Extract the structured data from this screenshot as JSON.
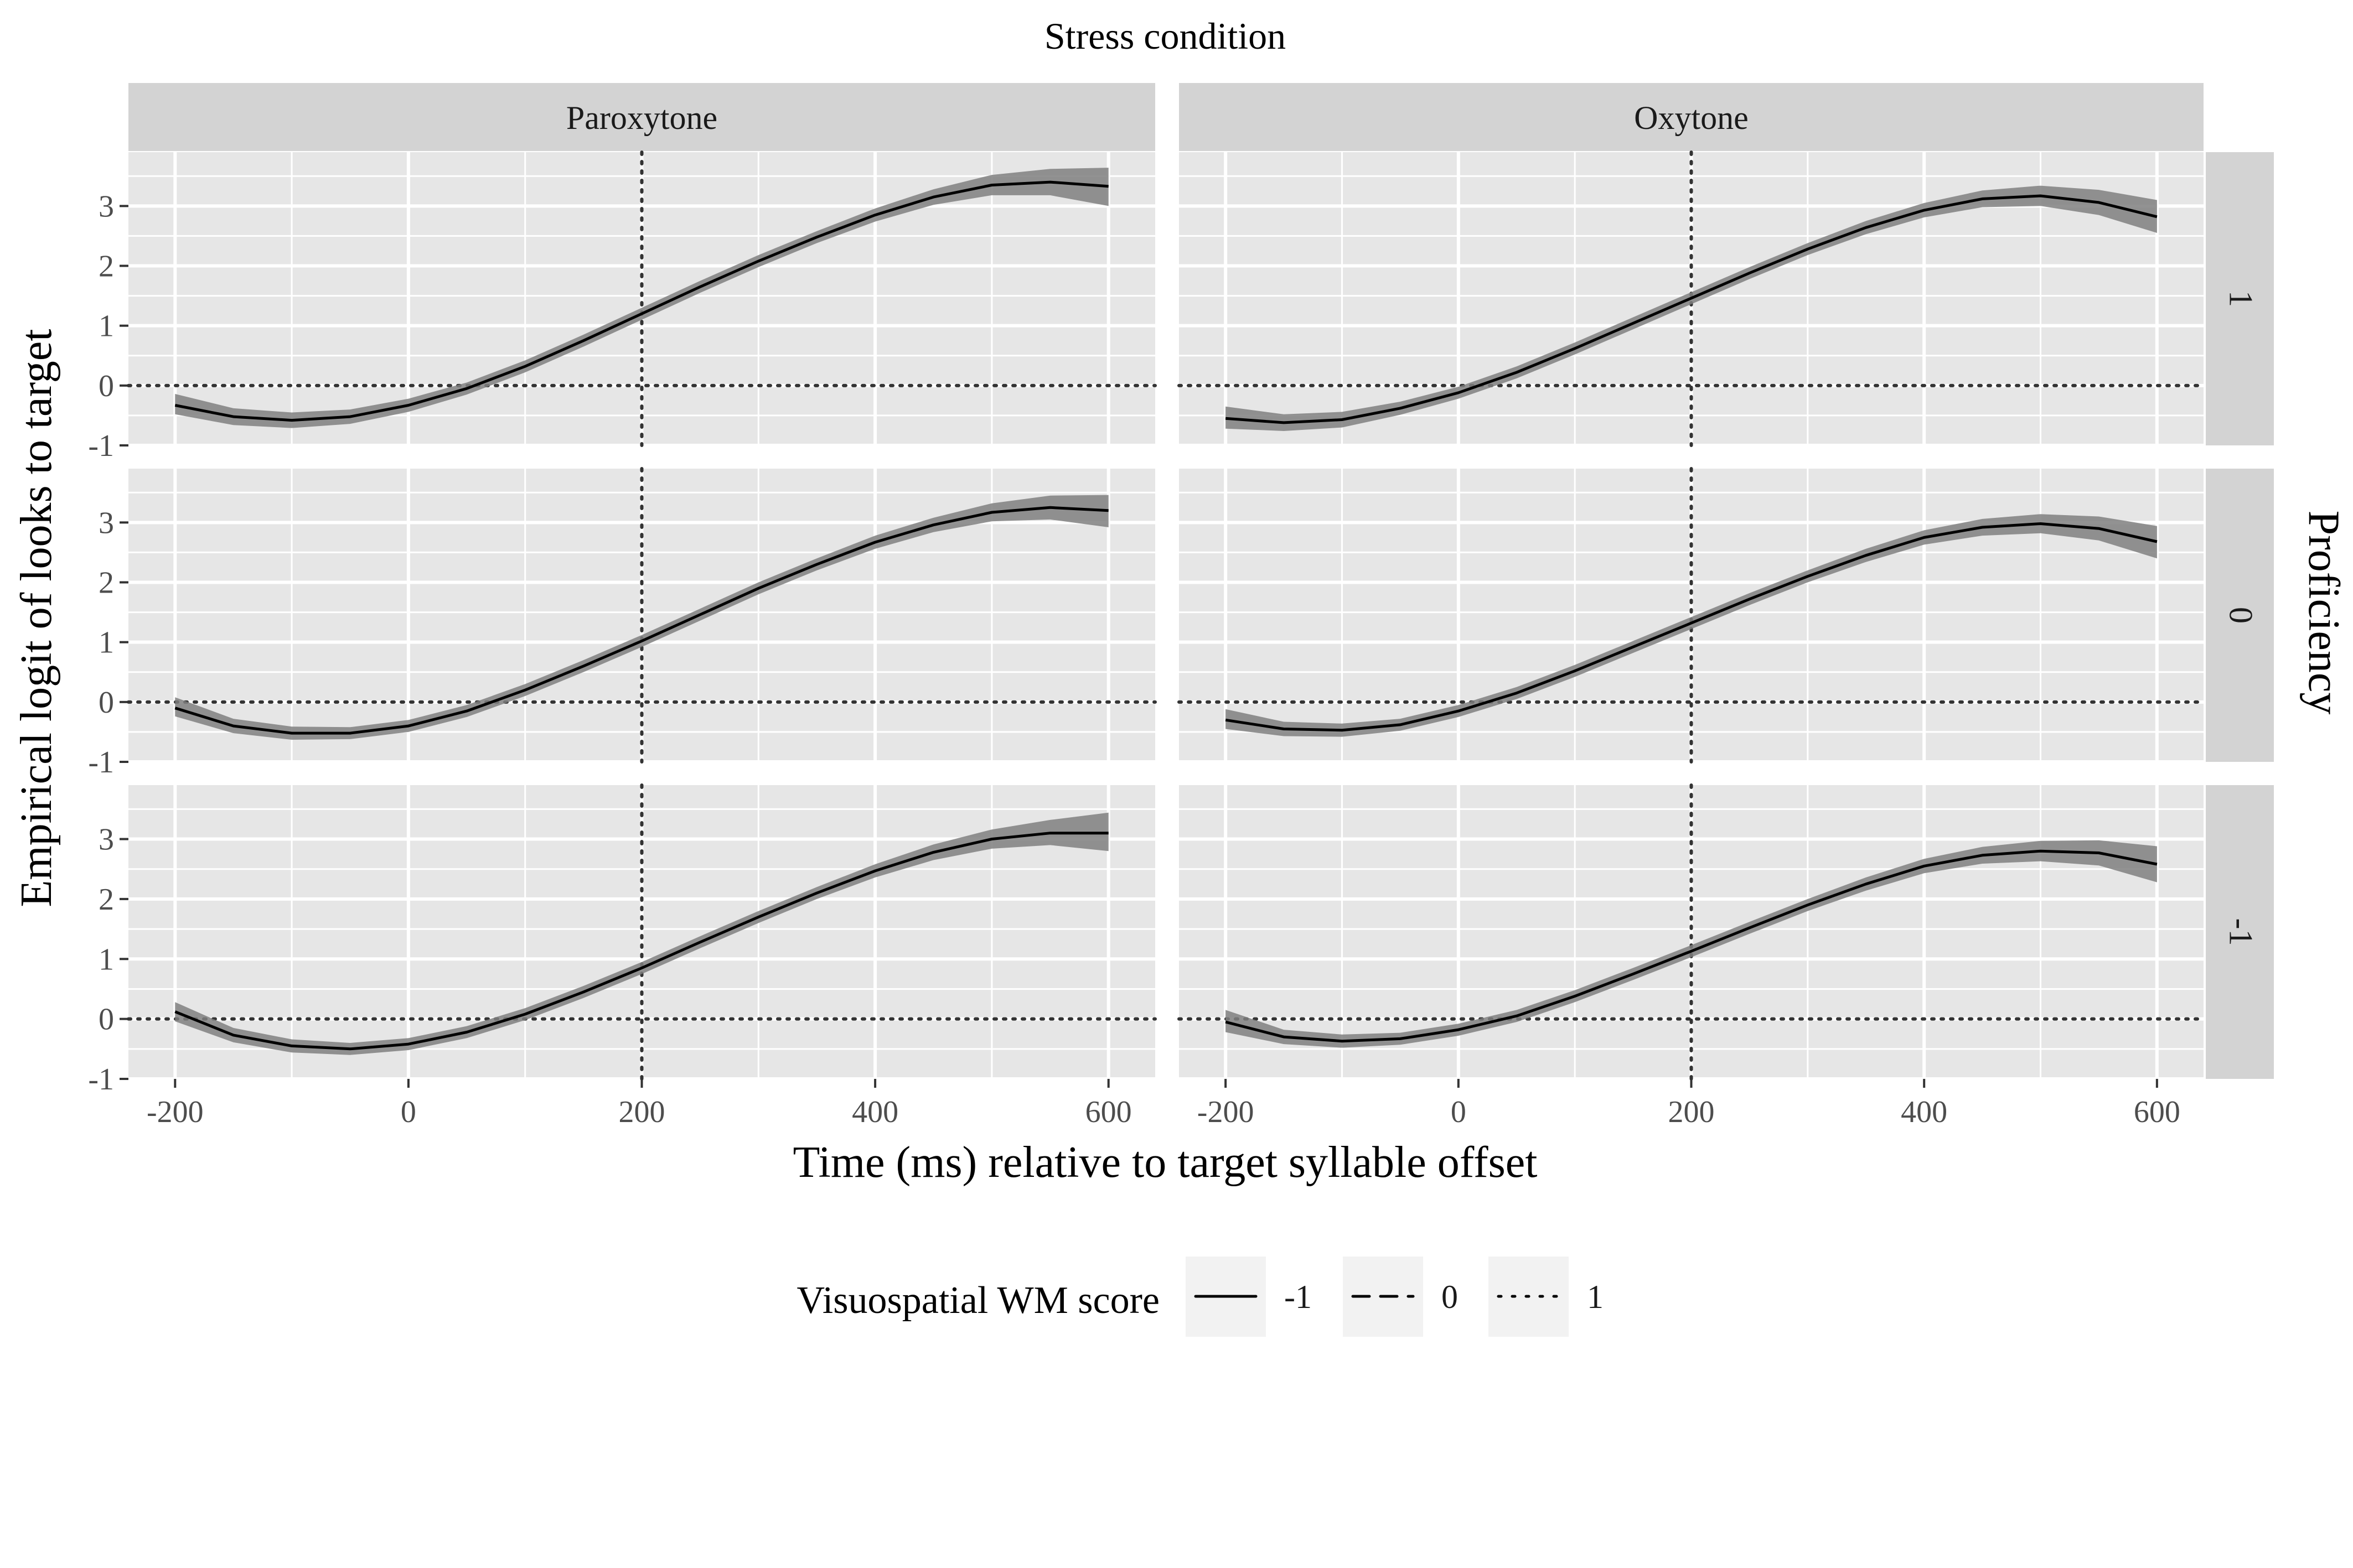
{
  "figure": {
    "top_title": "Stress condition",
    "row_strip_title": "Proficiency",
    "x_axis_title": "Time (ms) relative to target syllable offset",
    "y_axis_title": "Empirical logit of looks to target"
  },
  "legend": {
    "title": "Visuospatial WM score",
    "items": [
      {
        "label": "-1",
        "dash": "solid"
      },
      {
        "label": "0",
        "dash": "dashed"
      },
      {
        "label": "1",
        "dash": "dotted"
      }
    ]
  },
  "colors": {
    "panel_bg": "#e6e6e6",
    "strip_bg": "#d3d3d3",
    "grid": "#ffffff",
    "ribbon": "#7f7f7f",
    "line": "#000000",
    "refline": "#333333"
  },
  "chart_data": {
    "type": "line",
    "facet_columns": [
      "Paroxytone",
      "Oxytone"
    ],
    "facet_rows": [
      "1",
      "0",
      "-1"
    ],
    "xlim": [
      -240,
      640
    ],
    "ylim": [
      -1,
      3.9
    ],
    "x_ticks": [
      -200,
      0,
      200,
      400,
      600
    ],
    "y_ticks": [
      -1,
      0,
      1,
      2,
      3
    ],
    "reference_lines": {
      "vertical_x": 200,
      "horizontal_y": 0
    },
    "grid": true,
    "legend_position": "bottom",
    "x": [
      -200,
      -150,
      -100,
      -50,
      0,
      50,
      100,
      150,
      200,
      250,
      300,
      350,
      400,
      450,
      500,
      550,
      600
    ],
    "panels": [
      {
        "column": "Paroxytone",
        "row": "1",
        "series": [
          {
            "name": "-1",
            "values": [
              -0.33,
              -0.52,
              -0.58,
              -0.52,
              -0.33,
              -0.05,
              0.32,
              0.75,
              1.2,
              1.65,
              2.08,
              2.48,
              2.85,
              3.15,
              3.35,
              3.4,
              3.33
            ],
            "lower": [
              -0.48,
              -0.66,
              -0.71,
              -0.64,
              -0.44,
              -0.15,
              0.22,
              0.65,
              1.1,
              1.55,
              1.98,
              2.38,
              2.74,
              3.02,
              3.18,
              3.18,
              3.0
            ],
            "upper": [
              -0.14,
              -0.38,
              -0.45,
              -0.4,
              -0.22,
              0.05,
              0.42,
              0.85,
              1.3,
              1.75,
              2.18,
              2.58,
              2.96,
              3.28,
              3.52,
              3.62,
              3.64
            ]
          }
        ]
      },
      {
        "column": "Oxytone",
        "row": "1",
        "series": [
          {
            "name": "-1",
            "values": [
              -0.55,
              -0.62,
              -0.57,
              -0.38,
              -0.12,
              0.22,
              0.62,
              1.04,
              1.46,
              1.88,
              2.28,
              2.64,
              2.93,
              3.12,
              3.17,
              3.06,
              2.82
            ],
            "lower": [
              -0.72,
              -0.76,
              -0.7,
              -0.49,
              -0.22,
              0.12,
              0.52,
              0.94,
              1.36,
              1.78,
              2.18,
              2.53,
              2.81,
              2.98,
              3.0,
              2.85,
              2.55
            ],
            "upper": [
              -0.35,
              -0.48,
              -0.44,
              -0.27,
              -0.02,
              0.32,
              0.72,
              1.14,
              1.56,
              1.98,
              2.38,
              2.75,
              3.05,
              3.26,
              3.34,
              3.27,
              3.1
            ]
          }
        ]
      },
      {
        "column": "Paroxytone",
        "row": "0",
        "series": [
          {
            "name": "-1",
            "values": [
              -0.1,
              -0.4,
              -0.52,
              -0.52,
              -0.4,
              -0.15,
              0.2,
              0.6,
              1.02,
              1.46,
              1.9,
              2.3,
              2.67,
              2.96,
              3.17,
              3.25,
              3.2
            ],
            "lower": [
              -0.24,
              -0.52,
              -0.63,
              -0.62,
              -0.5,
              -0.25,
              0.1,
              0.5,
              0.92,
              1.36,
              1.8,
              2.2,
              2.56,
              2.84,
              3.02,
              3.05,
              2.92
            ],
            "upper": [
              0.08,
              -0.28,
              -0.41,
              -0.42,
              -0.3,
              -0.05,
              0.3,
              0.7,
              1.12,
              1.56,
              2.0,
              2.4,
              2.78,
              3.08,
              3.32,
              3.45,
              3.46
            ]
          }
        ]
      },
      {
        "column": "Oxytone",
        "row": "0",
        "series": [
          {
            "name": "-1",
            "values": [
              -0.3,
              -0.45,
              -0.47,
              -0.38,
              -0.15,
              0.15,
              0.52,
              0.92,
              1.32,
              1.72,
              2.1,
              2.45,
              2.75,
              2.92,
              2.98,
              2.9,
              2.68
            ],
            "lower": [
              -0.45,
              -0.57,
              -0.58,
              -0.48,
              -0.25,
              0.05,
              0.42,
              0.82,
              1.22,
              1.62,
              2.0,
              2.34,
              2.63,
              2.78,
              2.82,
              2.7,
              2.4
            ],
            "upper": [
              -0.12,
              -0.33,
              -0.36,
              -0.28,
              -0.05,
              0.25,
              0.62,
              1.02,
              1.42,
              1.82,
              2.2,
              2.56,
              2.87,
              3.06,
              3.14,
              3.1,
              2.94
            ]
          }
        ]
      },
      {
        "column": "Paroxytone",
        "row": "-1",
        "series": [
          {
            "name": "-1",
            "values": [
              0.12,
              -0.27,
              -0.45,
              -0.5,
              -0.42,
              -0.22,
              0.08,
              0.45,
              0.85,
              1.28,
              1.7,
              2.1,
              2.47,
              2.78,
              3.0,
              3.1,
              3.1
            ],
            "lower": [
              -0.04,
              -0.39,
              -0.56,
              -0.6,
              -0.52,
              -0.32,
              -0.02,
              0.35,
              0.75,
              1.18,
              1.6,
              2.0,
              2.36,
              2.65,
              2.84,
              2.9,
              2.8
            ],
            "upper": [
              0.28,
              -0.15,
              -0.34,
              -0.4,
              -0.32,
              -0.12,
              0.18,
              0.55,
              0.95,
              1.38,
              1.8,
              2.2,
              2.58,
              2.91,
              3.16,
              3.32,
              3.44
            ]
          }
        ]
      },
      {
        "column": "Oxytone",
        "row": "-1",
        "series": [
          {
            "name": "-1",
            "values": [
              -0.05,
              -0.3,
              -0.37,
              -0.33,
              -0.18,
              0.05,
              0.38,
              0.75,
              1.13,
              1.52,
              1.9,
              2.25,
              2.55,
              2.73,
              2.8,
              2.77,
              2.58
            ],
            "lower": [
              -0.22,
              -0.42,
              -0.48,
              -0.43,
              -0.28,
              -0.05,
              0.28,
              0.65,
              1.03,
              1.42,
              1.8,
              2.14,
              2.43,
              2.59,
              2.63,
              2.56,
              2.28
            ],
            "upper": [
              0.15,
              -0.18,
              -0.26,
              -0.23,
              -0.08,
              0.15,
              0.48,
              0.85,
              1.23,
              1.62,
              2.0,
              2.36,
              2.67,
              2.87,
              2.97,
              2.98,
              2.88
            ]
          }
        ]
      }
    ]
  }
}
